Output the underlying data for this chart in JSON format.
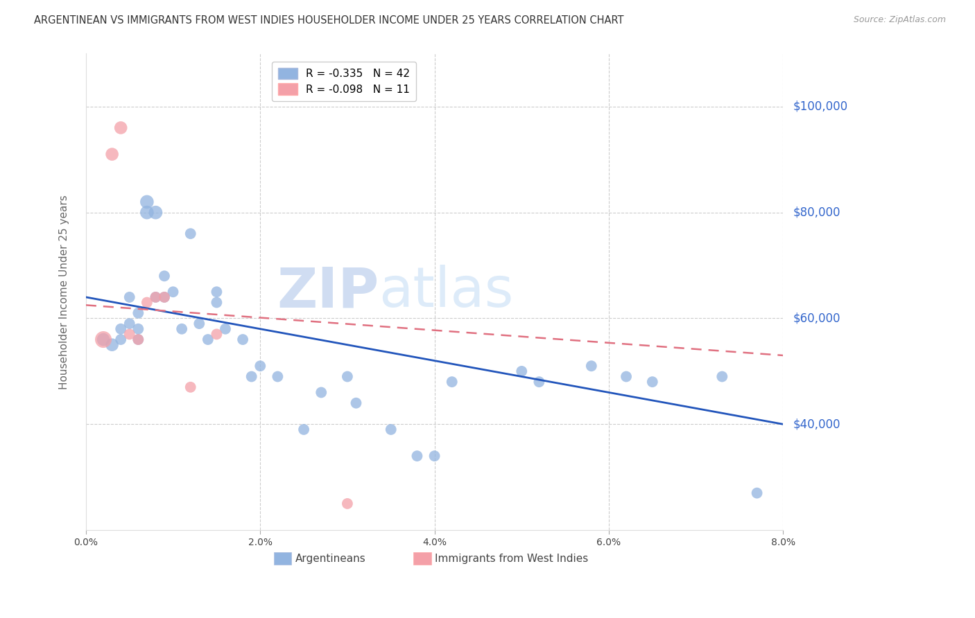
{
  "title": "ARGENTINEAN VS IMMIGRANTS FROM WEST INDIES HOUSEHOLDER INCOME UNDER 25 YEARS CORRELATION CHART",
  "source": "Source: ZipAtlas.com",
  "ylabel": "Householder Income Under 25 years",
  "xlim": [
    0.0,
    0.08
  ],
  "ylim": [
    20000,
    110000
  ],
  "xtick_labels": [
    "0.0%",
    "2.0%",
    "4.0%",
    "6.0%",
    "8.0%"
  ],
  "xticks": [
    0.0,
    0.02,
    0.04,
    0.06,
    0.08
  ],
  "right_ytick_labels": [
    "$100,000",
    "$80,000",
    "$60,000",
    "$40,000"
  ],
  "right_yticks": [
    100000,
    80000,
    60000,
    40000
  ],
  "watermark_zip": "ZIP",
  "watermark_atlas": "atlas",
  "legend_blue_r": "-0.335",
  "legend_blue_n": "42",
  "legend_pink_r": "-0.098",
  "legend_pink_n": "11",
  "blue_color": "#92B4E0",
  "pink_color": "#F4A0A8",
  "blue_line_color": "#2255BB",
  "pink_line_color": "#E07080",
  "title_color": "#333333",
  "axis_label_color": "#666666",
  "right_axis_color": "#3366CC",
  "grid_color": "#CCCCCC",
  "blue_line_x": [
    0.0,
    0.08
  ],
  "blue_line_y": [
    64000,
    40000
  ],
  "pink_line_x": [
    0.0,
    0.08
  ],
  "pink_line_y": [
    62500,
    53000
  ],
  "argentineans_x": [
    0.002,
    0.003,
    0.004,
    0.004,
    0.005,
    0.005,
    0.006,
    0.006,
    0.006,
    0.007,
    0.007,
    0.008,
    0.008,
    0.009,
    0.009,
    0.01,
    0.011,
    0.012,
    0.013,
    0.014,
    0.015,
    0.015,
    0.016,
    0.018,
    0.019,
    0.02,
    0.022,
    0.025,
    0.027,
    0.03,
    0.031,
    0.035,
    0.038,
    0.04,
    0.042,
    0.05,
    0.052,
    0.058,
    0.062,
    0.065,
    0.073,
    0.077
  ],
  "argentineans_y": [
    56000,
    55000,
    58000,
    56000,
    64000,
    59000,
    61000,
    58000,
    56000,
    82000,
    80000,
    80000,
    64000,
    68000,
    64000,
    65000,
    58000,
    76000,
    59000,
    56000,
    65000,
    63000,
    58000,
    56000,
    49000,
    51000,
    49000,
    39000,
    46000,
    49000,
    44000,
    39000,
    34000,
    34000,
    48000,
    50000,
    48000,
    51000,
    49000,
    48000,
    49000,
    27000
  ],
  "argentineans_size": [
    180,
    180,
    130,
    130,
    130,
    130,
    130,
    130,
    130,
    200,
    200,
    200,
    130,
    130,
    130,
    130,
    130,
    130,
    130,
    130,
    130,
    130,
    130,
    130,
    130,
    130,
    130,
    130,
    130,
    130,
    130,
    130,
    130,
    130,
    130,
    130,
    130,
    130,
    130,
    130,
    130,
    130
  ],
  "west_indies_x": [
    0.002,
    0.003,
    0.004,
    0.005,
    0.006,
    0.007,
    0.008,
    0.009,
    0.012,
    0.015,
    0.03
  ],
  "west_indies_y": [
    56000,
    91000,
    96000,
    57000,
    56000,
    63000,
    64000,
    64000,
    47000,
    57000,
    25000
  ],
  "west_indies_size": [
    300,
    180,
    180,
    130,
    130,
    130,
    130,
    130,
    130,
    130,
    130
  ]
}
